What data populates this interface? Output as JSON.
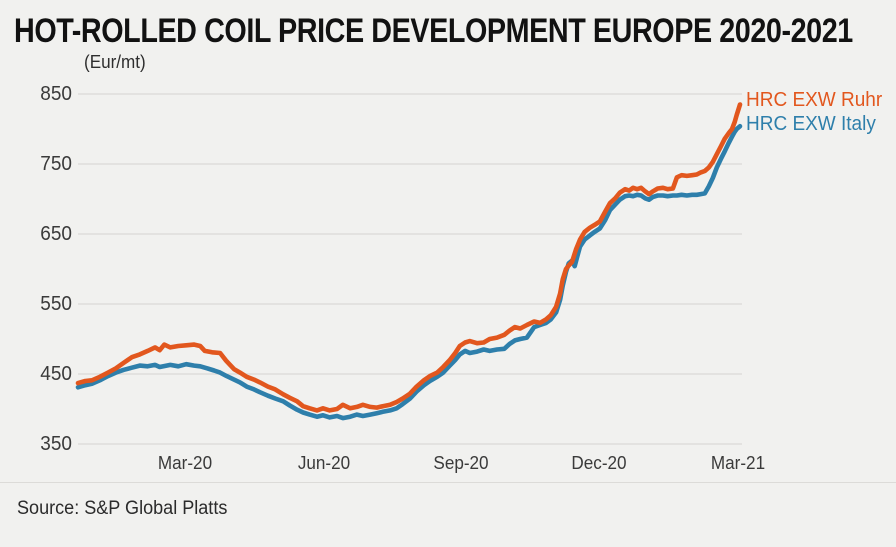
{
  "title": "HOT-ROLLED COIL PRICE DEVELOPMENT EUROPE 2020-2021",
  "unit_label": "(Eur/mt)",
  "source_text": "Source: S&P Global Platts",
  "colors": {
    "background": "#f1f1ef",
    "grid": "#dbdad7",
    "title_text": "#121212",
    "tick_text": "#3a3a3a",
    "ruhr_orange": "#e2571e",
    "italy_blue": "#2e7fab"
  },
  "legend": [
    {
      "label": "HRC EXW Ruhr",
      "color": "#e2571e"
    },
    {
      "label": "HRC EXW Italy",
      "color": "#2e7fab"
    }
  ],
  "chart_data": {
    "type": "line",
    "title": "HOT-ROLLED COIL PRICE DEVELOPMENT EUROPE 2020-2021",
    "ylabel": "(Eur/mt)",
    "ylim": [
      350,
      850
    ],
    "yticks": [
      850,
      750,
      650,
      550,
      450,
      350
    ],
    "grid": "horizontal",
    "legend_position": "top-right",
    "x_axis_note": "x = fraction across plot width; span is Jan-2020 to mid-Mar-2021",
    "xticks": [
      {
        "label": "Mar-20",
        "x": 0.161
      },
      {
        "label": "Jun-20",
        "x": 0.37
      },
      {
        "label": "Sep-20",
        "x": 0.577
      },
      {
        "label": "Dec-20",
        "x": 0.785
      },
      {
        "label": "Mar-21",
        "x": 0.994
      }
    ],
    "series": [
      {
        "name": "HRC EXW Ruhr",
        "color": "#e2571e",
        "points": [
          [
            0.0,
            437
          ],
          [
            0.011,
            440
          ],
          [
            0.021,
            441
          ],
          [
            0.033,
            446
          ],
          [
            0.045,
            452
          ],
          [
            0.057,
            458
          ],
          [
            0.069,
            466
          ],
          [
            0.081,
            474
          ],
          [
            0.093,
            478
          ],
          [
            0.105,
            483
          ],
          [
            0.116,
            488
          ],
          [
            0.123,
            484
          ],
          [
            0.13,
            492
          ],
          [
            0.139,
            488
          ],
          [
            0.151,
            490
          ],
          [
            0.163,
            491
          ],
          [
            0.175,
            492
          ],
          [
            0.184,
            490
          ],
          [
            0.191,
            483
          ],
          [
            0.202,
            481
          ],
          [
            0.214,
            480
          ],
          [
            0.223,
            469
          ],
          [
            0.235,
            457
          ],
          [
            0.244,
            452
          ],
          [
            0.254,
            446
          ],
          [
            0.265,
            442
          ],
          [
            0.274,
            438
          ],
          [
            0.286,
            432
          ],
          [
            0.297,
            428
          ],
          [
            0.309,
            421
          ],
          [
            0.319,
            416
          ],
          [
            0.33,
            411
          ],
          [
            0.339,
            404
          ],
          [
            0.349,
            401
          ],
          [
            0.36,
            398
          ],
          [
            0.369,
            401
          ],
          [
            0.379,
            398
          ],
          [
            0.39,
            400
          ],
          [
            0.399,
            406
          ],
          [
            0.41,
            401
          ],
          [
            0.42,
            403
          ],
          [
            0.429,
            406
          ],
          [
            0.44,
            403
          ],
          [
            0.45,
            402
          ],
          [
            0.459,
            404
          ],
          [
            0.47,
            406
          ],
          [
            0.48,
            410
          ],
          [
            0.489,
            415
          ],
          [
            0.5,
            422
          ],
          [
            0.51,
            432
          ],
          [
            0.521,
            441
          ],
          [
            0.53,
            447
          ],
          [
            0.541,
            452
          ],
          [
            0.55,
            460
          ],
          [
            0.56,
            470
          ],
          [
            0.568,
            480
          ],
          [
            0.575,
            490
          ],
          [
            0.583,
            495
          ],
          [
            0.59,
            497
          ],
          [
            0.601,
            494
          ],
          [
            0.611,
            495
          ],
          [
            0.62,
            500
          ],
          [
            0.631,
            502
          ],
          [
            0.642,
            506
          ],
          [
            0.65,
            512
          ],
          [
            0.658,
            517
          ],
          [
            0.666,
            515
          ],
          [
            0.676,
            520
          ],
          [
            0.687,
            525
          ],
          [
            0.696,
            523
          ],
          [
            0.705,
            528
          ],
          [
            0.712,
            534
          ],
          [
            0.72,
            546
          ],
          [
            0.726,
            565
          ],
          [
            0.73,
            585
          ],
          [
            0.735,
            600
          ],
          [
            0.739,
            605
          ],
          [
            0.744,
            610
          ],
          [
            0.75,
            628
          ],
          [
            0.756,
            642
          ],
          [
            0.763,
            653
          ],
          [
            0.771,
            659
          ],
          [
            0.778,
            663
          ],
          [
            0.786,
            668
          ],
          [
            0.794,
            682
          ],
          [
            0.801,
            694
          ],
          [
            0.809,
            701
          ],
          [
            0.816,
            709
          ],
          [
            0.824,
            714
          ],
          [
            0.83,
            712
          ],
          [
            0.836,
            716
          ],
          [
            0.842,
            714
          ],
          [
            0.848,
            716
          ],
          [
            0.854,
            711
          ],
          [
            0.86,
            707
          ],
          [
            0.866,
            711
          ],
          [
            0.873,
            715
          ],
          [
            0.881,
            716
          ],
          [
            0.888,
            714
          ],
          [
            0.896,
            715
          ],
          [
            0.902,
            731
          ],
          [
            0.909,
            734
          ],
          [
            0.917,
            733
          ],
          [
            0.925,
            734
          ],
          [
            0.932,
            735
          ],
          [
            0.938,
            738
          ],
          [
            0.944,
            740
          ],
          [
            0.95,
            745
          ],
          [
            0.956,
            753
          ],
          [
            0.962,
            764
          ],
          [
            0.968,
            775
          ],
          [
            0.974,
            786
          ],
          [
            0.98,
            794
          ],
          [
            0.985,
            800
          ],
          [
            0.989,
            810
          ],
          [
            0.992,
            820
          ],
          [
            0.997,
            835
          ]
        ]
      },
      {
        "name": "HRC EXW Italy",
        "color": "#2e7fab",
        "points": [
          [
            0.0,
            431
          ],
          [
            0.011,
            434
          ],
          [
            0.021,
            436
          ],
          [
            0.033,
            441
          ],
          [
            0.045,
            447
          ],
          [
            0.057,
            452
          ],
          [
            0.069,
            456
          ],
          [
            0.081,
            459
          ],
          [
            0.093,
            462
          ],
          [
            0.105,
            461
          ],
          [
            0.116,
            463
          ],
          [
            0.123,
            460
          ],
          [
            0.139,
            463
          ],
          [
            0.151,
            461
          ],
          [
            0.163,
            464
          ],
          [
            0.175,
            462
          ],
          [
            0.184,
            461
          ],
          [
            0.195,
            458
          ],
          [
            0.205,
            455
          ],
          [
            0.214,
            452
          ],
          [
            0.224,
            447
          ],
          [
            0.235,
            442
          ],
          [
            0.244,
            438
          ],
          [
            0.254,
            432
          ],
          [
            0.265,
            428
          ],
          [
            0.274,
            424
          ],
          [
            0.286,
            419
          ],
          [
            0.297,
            415
          ],
          [
            0.309,
            411
          ],
          [
            0.319,
            405
          ],
          [
            0.33,
            399
          ],
          [
            0.339,
            395
          ],
          [
            0.349,
            392
          ],
          [
            0.36,
            389
          ],
          [
            0.369,
            391
          ],
          [
            0.379,
            388
          ],
          [
            0.39,
            390
          ],
          [
            0.399,
            387
          ],
          [
            0.41,
            389
          ],
          [
            0.42,
            392
          ],
          [
            0.429,
            390
          ],
          [
            0.44,
            392
          ],
          [
            0.45,
            394
          ],
          [
            0.459,
            396
          ],
          [
            0.47,
            398
          ],
          [
            0.48,
            401
          ],
          [
            0.489,
            407
          ],
          [
            0.5,
            415
          ],
          [
            0.51,
            425
          ],
          [
            0.521,
            434
          ],
          [
            0.53,
            440
          ],
          [
            0.541,
            446
          ],
          [
            0.55,
            452
          ],
          [
            0.56,
            462
          ],
          [
            0.568,
            470
          ],
          [
            0.575,
            478
          ],
          [
            0.583,
            483
          ],
          [
            0.59,
            480
          ],
          [
            0.601,
            482
          ],
          [
            0.611,
            485
          ],
          [
            0.62,
            483
          ],
          [
            0.631,
            485
          ],
          [
            0.642,
            486
          ],
          [
            0.65,
            493
          ],
          [
            0.658,
            498
          ],
          [
            0.666,
            500
          ],
          [
            0.676,
            502
          ],
          [
            0.687,
            517
          ],
          [
            0.696,
            520
          ],
          [
            0.705,
            523
          ],
          [
            0.712,
            528
          ],
          [
            0.72,
            538
          ],
          [
            0.726,
            556
          ],
          [
            0.73,
            576
          ],
          [
            0.735,
            596
          ],
          [
            0.739,
            608
          ],
          [
            0.744,
            612
          ],
          [
            0.748,
            604
          ],
          [
            0.752,
            618
          ],
          [
            0.756,
            632
          ],
          [
            0.763,
            642
          ],
          [
            0.771,
            648
          ],
          [
            0.778,
            653
          ],
          [
            0.786,
            658
          ],
          [
            0.794,
            670
          ],
          [
            0.801,
            684
          ],
          [
            0.809,
            692
          ],
          [
            0.816,
            699
          ],
          [
            0.824,
            704
          ],
          [
            0.83,
            705
          ],
          [
            0.836,
            704
          ],
          [
            0.842,
            706
          ],
          [
            0.848,
            705
          ],
          [
            0.854,
            701
          ],
          [
            0.86,
            699
          ],
          [
            0.866,
            703
          ],
          [
            0.873,
            705
          ],
          [
            0.881,
            705
          ],
          [
            0.888,
            704
          ],
          [
            0.896,
            705
          ],
          [
            0.902,
            705
          ],
          [
            0.909,
            706
          ],
          [
            0.917,
            705
          ],
          [
            0.925,
            706
          ],
          [
            0.932,
            706
          ],
          [
            0.938,
            707
          ],
          [
            0.944,
            708
          ],
          [
            0.95,
            718
          ],
          [
            0.956,
            730
          ],
          [
            0.962,
            745
          ],
          [
            0.968,
            757
          ],
          [
            0.974,
            768
          ],
          [
            0.98,
            780
          ],
          [
            0.985,
            789
          ],
          [
            0.989,
            796
          ],
          [
            0.992,
            800
          ],
          [
            0.997,
            804
          ]
        ]
      }
    ]
  }
}
